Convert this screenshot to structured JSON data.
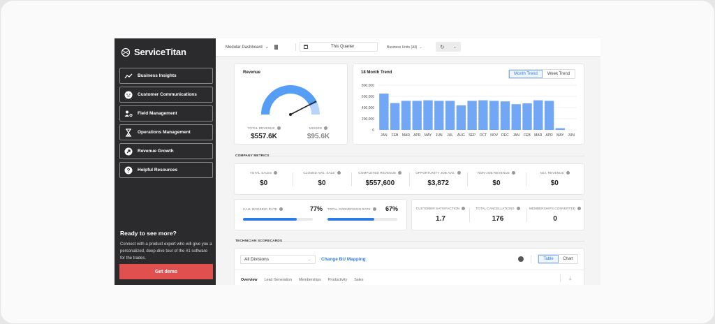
{
  "sidebar": {
    "brand": "ServiceTitan",
    "items": [
      {
        "label": "Business Insights",
        "icon": "trend-icon"
      },
      {
        "label": "Customer Communications",
        "icon": "smiley-icon"
      },
      {
        "label": "Field Management",
        "icon": "person-gear-icon"
      },
      {
        "label": "Operations Management",
        "icon": "hourglass-icon"
      },
      {
        "label": "Revenue Growth",
        "icon": "arrow-up-right-icon"
      },
      {
        "label": "Helpful Resources",
        "icon": "question-icon"
      }
    ],
    "promo": {
      "title": "Ready to see more?",
      "text": "Connect with a product expert who will give you a personalized, deep-dive tour of the #1 software for the trades.",
      "button": "Get demo"
    }
  },
  "topbar": {
    "dashboard_label": "Modular Dashboard",
    "date_range": "This Quarter",
    "business_units": "Business Units (All)"
  },
  "revenue": {
    "title": "Revenue",
    "total_label": "TOTAL REVENUE",
    "total_value": "$557.6K",
    "missed_label": "MISSED",
    "missed_value": "$95.6K",
    "gauge_fill_pct": 85,
    "colors": {
      "filled": "#559df5",
      "remaining": "#b8d4f8",
      "needle": "#222222"
    }
  },
  "trend": {
    "title": "18 Month Trend",
    "toggle": [
      "Month Trend",
      "Week Trend"
    ],
    "active_toggle": "Month Trend"
  },
  "chart_data": {
    "type": "bar",
    "title": "18 Month Trend",
    "categories": [
      "JAN",
      "FEB",
      "MAR",
      "APR",
      "MAY",
      "JUN",
      "JUL",
      "AUG",
      "SEP",
      "OCT",
      "NOV",
      "DEC",
      "JAN",
      "FEB",
      "MAR",
      "APR",
      "MAY",
      "JUN"
    ],
    "values": [
      650000,
      480000,
      520000,
      520000,
      530000,
      520000,
      520000,
      440000,
      520000,
      530000,
      520000,
      510000,
      460000,
      475000,
      530000,
      520000,
      30000,
      0
    ],
    "yticks": [
      "0",
      "200,000",
      "400,000",
      "600,000",
      "800,000"
    ],
    "ylim": [
      0,
      800000
    ],
    "xlabel": "",
    "ylabel": "",
    "grid": true,
    "color": "#72a7f5"
  },
  "company_metrics": {
    "section_label": "COMPANY METRICS",
    "row1": [
      {
        "label": "TOTAL SALES",
        "value": "$0"
      },
      {
        "label": "CLOSED AVG. SALE",
        "value": "$0"
      },
      {
        "label": "COMPLETED REVENUE",
        "value": "$557,600"
      },
      {
        "label": "OPPORTUNITY JOB AVG.",
        "value": "$3,872"
      },
      {
        "label": "NON-JOB REVENUE",
        "value": "$0"
      },
      {
        "label": "ADJ. REVENUE",
        "value": "$0"
      }
    ],
    "rates": [
      {
        "label": "CALL BOOKING RATE",
        "value": "77%",
        "pct": 77
      },
      {
        "label": "TOTAL CONVERSION RATE",
        "value": "67%",
        "pct": 67
      }
    ],
    "row2": [
      {
        "label": "CUSTOMER SATISFACTION",
        "value": "1.7"
      },
      {
        "label": "TOTAL CANCELLATIONS",
        "value": "176"
      },
      {
        "label": "MEMBERSHIPS CONVERTED",
        "value": "0"
      }
    ]
  },
  "scorecards": {
    "section_label": "TECHNICIAN SCORECARDS",
    "division": "All Divisions",
    "change_mapping": "Change BU Mapping",
    "view_toggle": [
      "Table",
      "Chart"
    ],
    "active_view": "Table",
    "tabs": [
      "Overview",
      "Lead Generation",
      "Memberships",
      "Productivity",
      "Sales"
    ],
    "active_tab": "Overview"
  }
}
